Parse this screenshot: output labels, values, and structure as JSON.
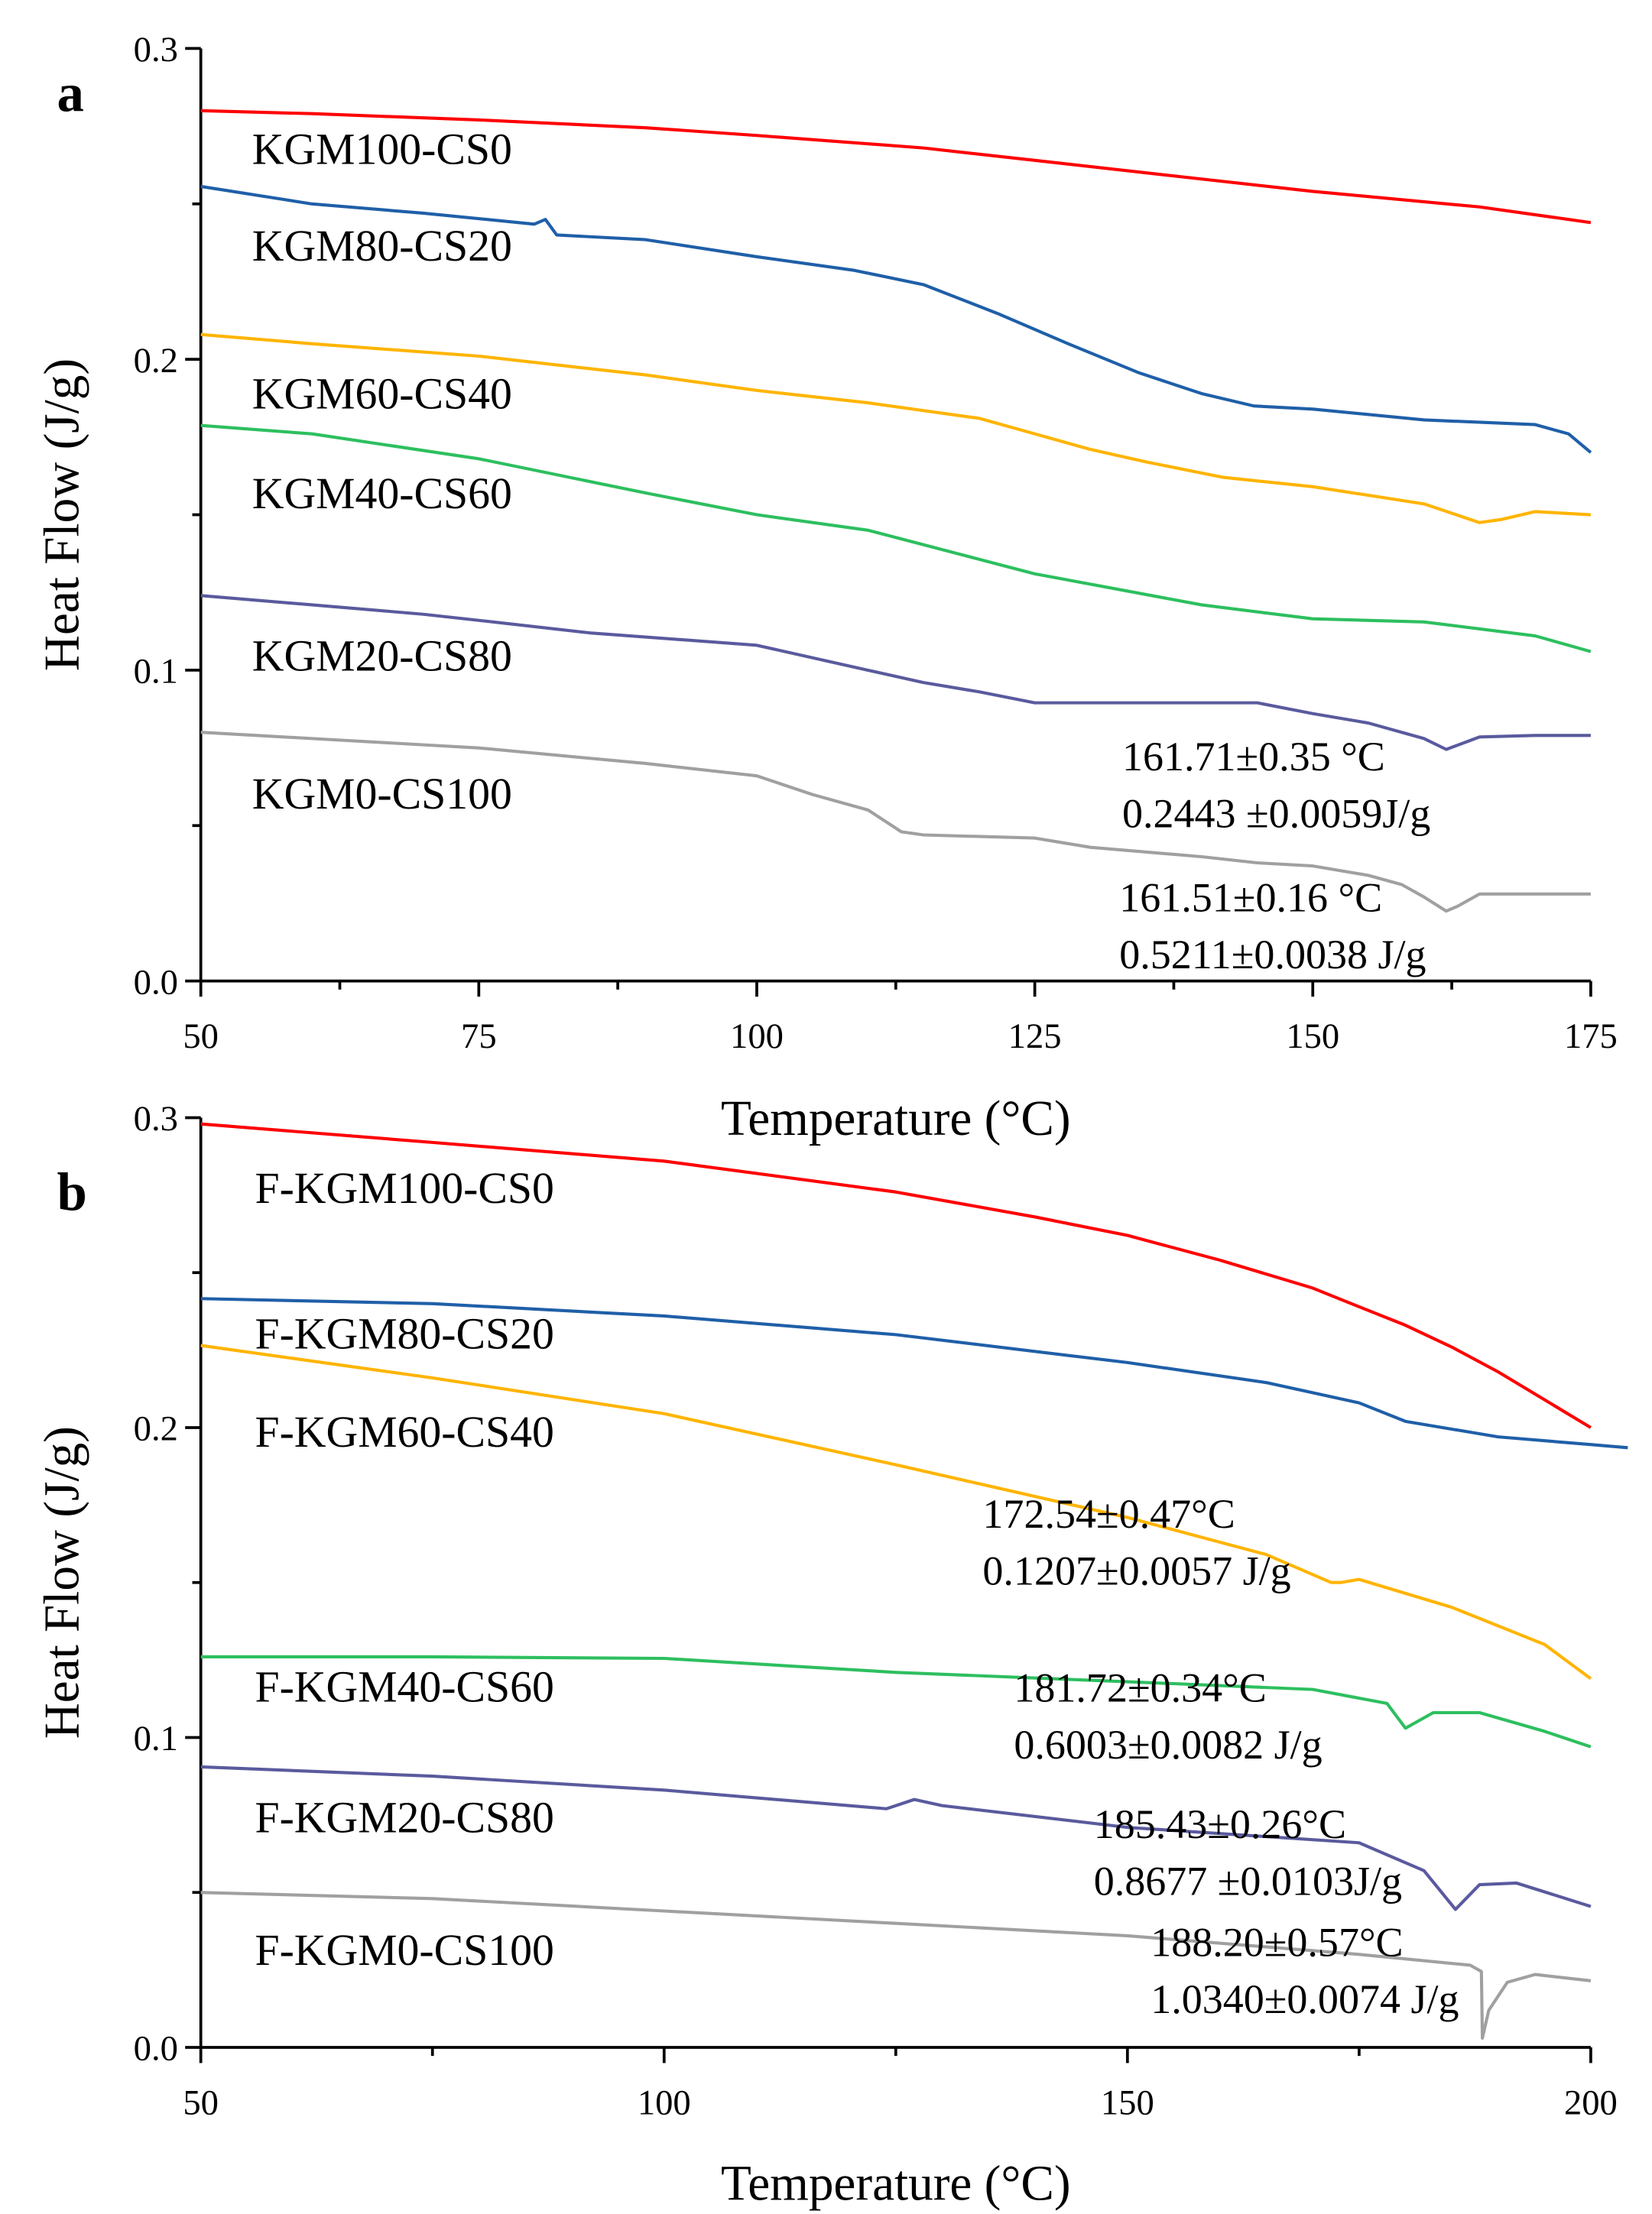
{
  "chart_data": [
    {
      "type": "line",
      "panel_label": "a",
      "xlabel": "Temperature (°C)",
      "ylabel": "Heat Flow (J/g)",
      "xlim": [
        50,
        175
      ],
      "ylim": [
        0.0,
        0.3
      ],
      "xticks": [
        "50",
        "75",
        "100",
        "125",
        "150",
        "175"
      ],
      "yticks": [
        "0.0",
        "0.1",
        "0.2",
        "0.3"
      ],
      "grid": false,
      "series": [
        {
          "name": "KGM100-CS0",
          "color": "#ff0000",
          "x": [
            50,
            60,
            75,
            90,
            100,
            115,
            125,
            140,
            150,
            165,
            175
          ],
          "y": [
            0.28,
            0.279,
            0.277,
            0.2745,
            0.272,
            0.268,
            0.264,
            0.258,
            0.254,
            0.249,
            0.244
          ]
        },
        {
          "name": "KGM80-CS20",
          "color": "#1f5fa8",
          "x": [
            50,
            60,
            70,
            80,
            81,
            82,
            90,
            100,
            108.8,
            115,
            121.6,
            128,
            134.4,
            140,
            144.7,
            150,
            160,
            170,
            173,
            175
          ],
          "y": [
            0.2556,
            0.25,
            0.247,
            0.2435,
            0.245,
            0.24,
            0.2385,
            0.233,
            0.2286,
            0.224,
            0.2148,
            0.205,
            0.1956,
            0.189,
            0.185,
            0.184,
            0.1805,
            0.179,
            0.176,
            0.17
          ]
        },
        {
          "name": "KGM60-CS40",
          "color": "#ffb400",
          "x": [
            50,
            60,
            75,
            90,
            100,
            110,
            120,
            125,
            130,
            135,
            142,
            150,
            160,
            165,
            167,
            170,
            175
          ],
          "y": [
            0.208,
            0.205,
            0.201,
            0.195,
            0.19,
            0.186,
            0.181,
            0.176,
            0.171,
            0.167,
            0.162,
            0.159,
            0.1535,
            0.1475,
            0.1485,
            0.151,
            0.15
          ]
        },
        {
          "name": "KGM40-CS60",
          "color": "#2dbf5f",
          "x": [
            50,
            60,
            75,
            90,
            100,
            110,
            125,
            140,
            150,
            160,
            170,
            175
          ],
          "y": [
            0.1787,
            0.176,
            0.168,
            0.157,
            0.15,
            0.145,
            0.131,
            0.121,
            0.1165,
            0.1155,
            0.111,
            0.106
          ]
        },
        {
          "name": "KGM20-CS80",
          "color": "#5a5a9e",
          "x": [
            50,
            60,
            70,
            75,
            85,
            100,
            110,
            115,
            120,
            125,
            135,
            145,
            150,
            155,
            160,
            162,
            165,
            170,
            175
          ],
          "y": [
            0.124,
            0.121,
            0.118,
            0.116,
            0.112,
            0.108,
            0.1,
            0.096,
            0.093,
            0.0895,
            0.0895,
            0.0895,
            0.086,
            0.083,
            0.078,
            0.0745,
            0.0785,
            0.079,
            0.079
          ]
        },
        {
          "name": "KGM0-CS100",
          "color": "#a0a0a0",
          "x": [
            50,
            60,
            75,
            90,
            100,
            105,
            110,
            113,
            115,
            125,
            130,
            140,
            145,
            150,
            155,
            158,
            160,
            162,
            163,
            165,
            170,
            175
          ],
          "y": [
            0.08,
            0.078,
            0.075,
            0.07,
            0.066,
            0.06,
            0.055,
            0.048,
            0.047,
            0.046,
            0.043,
            0.04,
            0.038,
            0.037,
            0.034,
            0.031,
            0.027,
            0.0225,
            0.024,
            0.028,
            0.028,
            0.028
          ]
        }
      ],
      "annotations": [
        {
          "line1": "161.71±0.35 °C",
          "line2": "0.2443 ±0.0059J/g"
        },
        {
          "line1": "161.51±0.16 °C",
          "line2": "0.5211±0.0038 J/g"
        }
      ]
    },
    {
      "type": "line",
      "panel_label": "b",
      "xlabel": "Temperature (°C)",
      "ylabel": "Heat Flow (J/g)",
      "xlim": [
        50,
        200
      ],
      "ylim": [
        0.0,
        0.3
      ],
      "xticks": [
        "50",
        "100",
        "150",
        "200"
      ],
      "yticks": [
        "0.0",
        "0.1",
        "0.2",
        "0.3"
      ],
      "grid": false,
      "series": [
        {
          "name": "F-KGM100-CS0",
          "color": "#ff0000",
          "x": [
            50,
            75,
            100,
            125,
            140,
            150,
            160,
            170,
            175,
            180,
            185,
            190,
            195,
            200
          ],
          "y": [
            0.298,
            0.292,
            0.286,
            0.276,
            0.268,
            0.262,
            0.254,
            0.245,
            0.239,
            0.233,
            0.226,
            0.218,
            0.209,
            0.2
          ]
        },
        {
          "name": "F-KGM80-CS20",
          "color": "#1f5fa8",
          "x": [
            50,
            75,
            100,
            125,
            150,
            165,
            175,
            180,
            190,
            200,
            204
          ],
          "y": [
            0.2416,
            0.24,
            0.236,
            0.23,
            0.221,
            0.2145,
            0.208,
            0.202,
            0.197,
            0.1945,
            0.1935
          ]
        },
        {
          "name": "F-KGM60-CS40",
          "color": "#ffb400",
          "x": [
            50,
            75,
            100,
            125,
            150,
            165,
            172,
            173,
            175,
            185,
            195,
            200
          ],
          "y": [
            0.2265,
            0.216,
            0.2045,
            0.188,
            0.171,
            0.159,
            0.15,
            0.15,
            0.151,
            0.142,
            0.13,
            0.119
          ]
        },
        {
          "name": "F-KGM40-CS60",
          "color": "#2dbf5f",
          "x": [
            50,
            75,
            100,
            125,
            150,
            170,
            178,
            180,
            183,
            188,
            195,
            200
          ],
          "y": [
            0.126,
            0.126,
            0.1255,
            0.121,
            0.118,
            0.1155,
            0.111,
            0.103,
            0.108,
            0.108,
            0.102,
            0.097
          ]
        },
        {
          "name": "F-KGM20-CS80",
          "color": "#5a5a9e",
          "x": [
            50,
            75,
            100,
            124,
            127,
            130,
            150,
            175,
            182,
            185.4,
            188,
            192,
            200
          ],
          "y": [
            0.0905,
            0.0875,
            0.083,
            0.077,
            0.08,
            0.078,
            0.071,
            0.066,
            0.057,
            0.0445,
            0.0525,
            0.053,
            0.0455
          ]
        },
        {
          "name": "F-KGM0-CS100",
          "color": "#a0a0a0",
          "x": [
            50,
            75,
            100,
            125,
            150,
            175,
            187,
            188.2,
            188.3,
            189,
            191,
            194,
            200
          ],
          "y": [
            0.05,
            0.048,
            0.044,
            0.04,
            0.036,
            0.03,
            0.0265,
            0.0245,
            0.003,
            0.012,
            0.021,
            0.0235,
            0.0215
          ]
        }
      ],
      "annotations": [
        {
          "line1": "172.54±0.47°C",
          "line2": "0.1207±0.0057 J/g"
        },
        {
          "line1": "181.72±0.34°C",
          "line2": "0.6003±0.0082 J/g"
        },
        {
          "line1": "185.43±0.26°C",
          "line2": "0.8677 ±0.0103J/g"
        },
        {
          "line1": "188.20±0.57°C",
          "line2": "1.0340±0.0074 J/g"
        }
      ]
    }
  ]
}
